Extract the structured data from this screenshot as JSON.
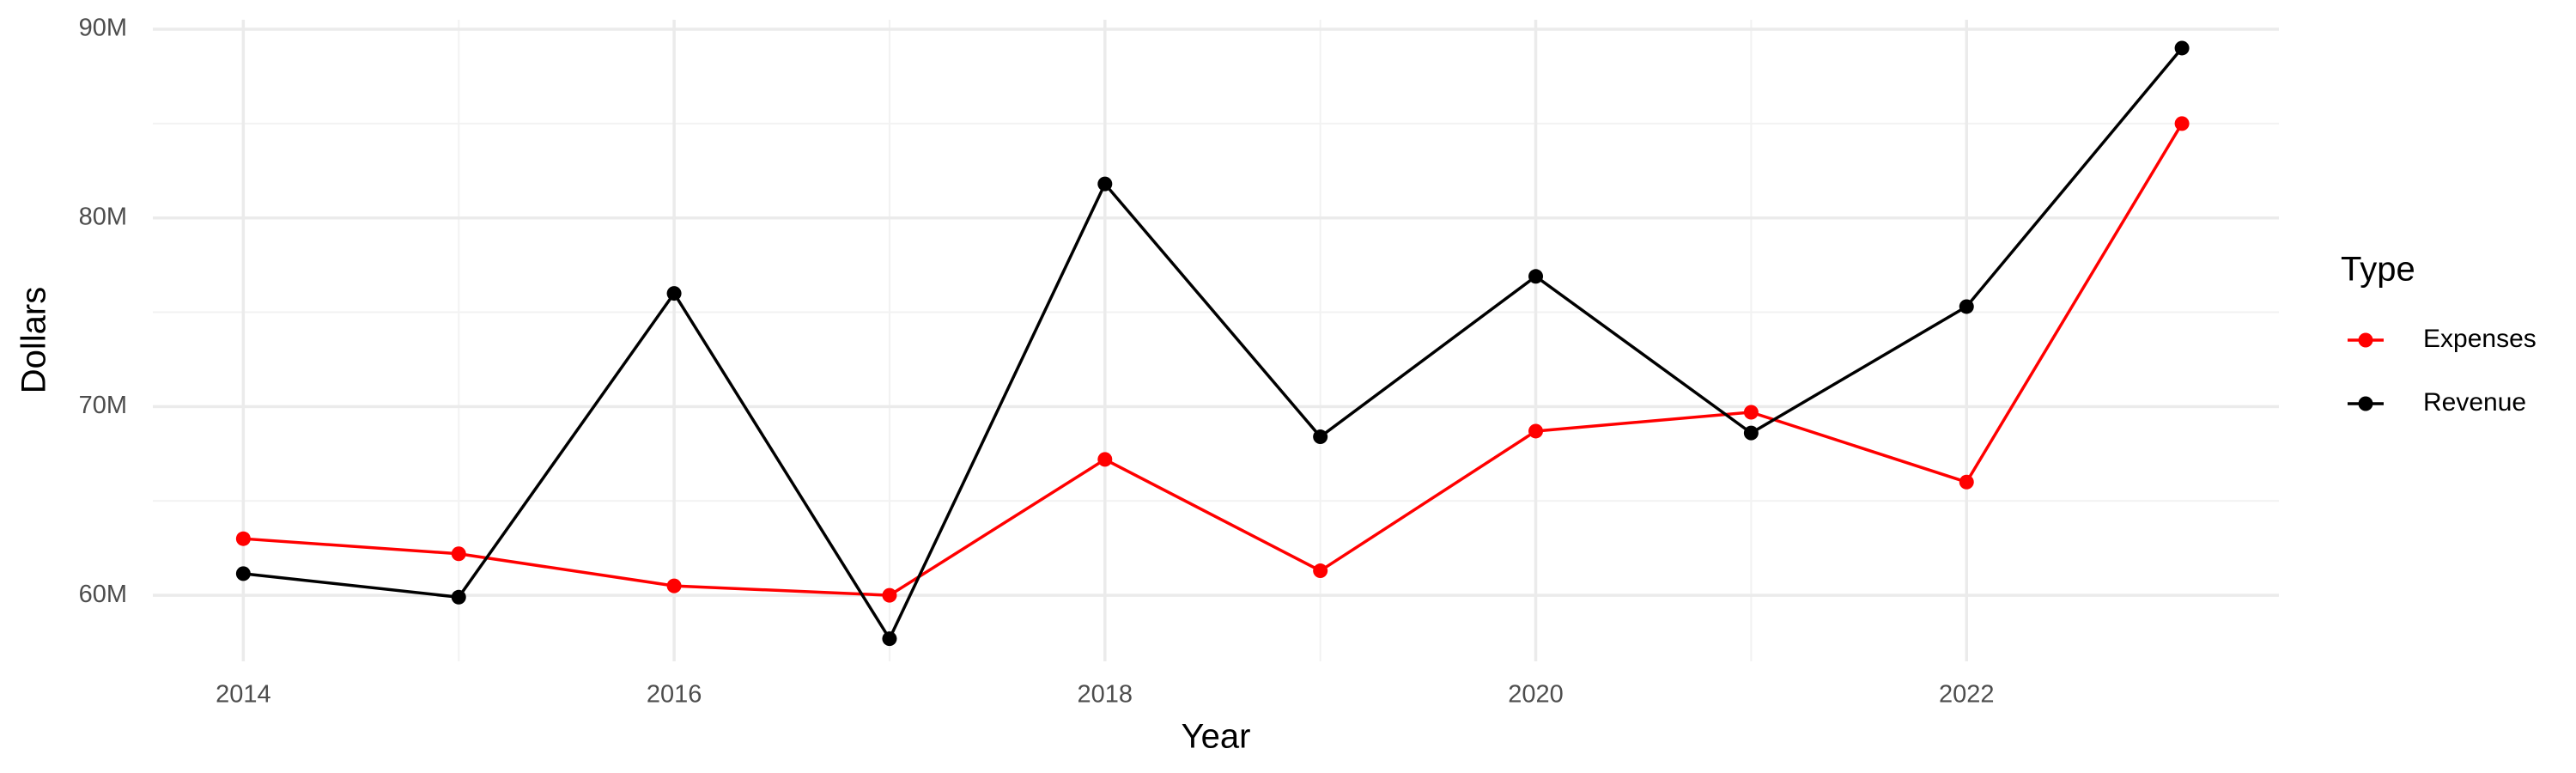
{
  "chart_data": {
    "type": "line",
    "x_label": "Year",
    "y_label": "Dollars",
    "legend_title": "Type",
    "x": [
      2014,
      2015,
      2016,
      2017,
      2018,
      2019,
      2020,
      2021,
      2022,
      2023
    ],
    "series": [
      {
        "name": "Expenses",
        "color": "#ff0000",
        "values": [
          63000000,
          62200000,
          60500000,
          60000000,
          67200000,
          61300000,
          68700000,
          69700000,
          66000000,
          85000000
        ]
      },
      {
        "name": "Revenue",
        "color": "#000000",
        "values": [
          61150000,
          59900000,
          76000000,
          57700000,
          81800000,
          68400000,
          76900000,
          68600000,
          75300000,
          89000000
        ]
      }
    ],
    "xlim": [
      2013.58,
      2023.45
    ],
    "ylim": [
      56500000,
      90500000
    ],
    "xticks": [
      2014,
      2016,
      2018,
      2020,
      2022
    ],
    "yticks": [
      {
        "value": 60000000,
        "label": "60M"
      },
      {
        "value": 70000000,
        "label": "70M"
      },
      {
        "value": 80000000,
        "label": "80M"
      },
      {
        "value": 90000000,
        "label": "90M"
      }
    ],
    "grid": true,
    "legend_position": "right"
  }
}
